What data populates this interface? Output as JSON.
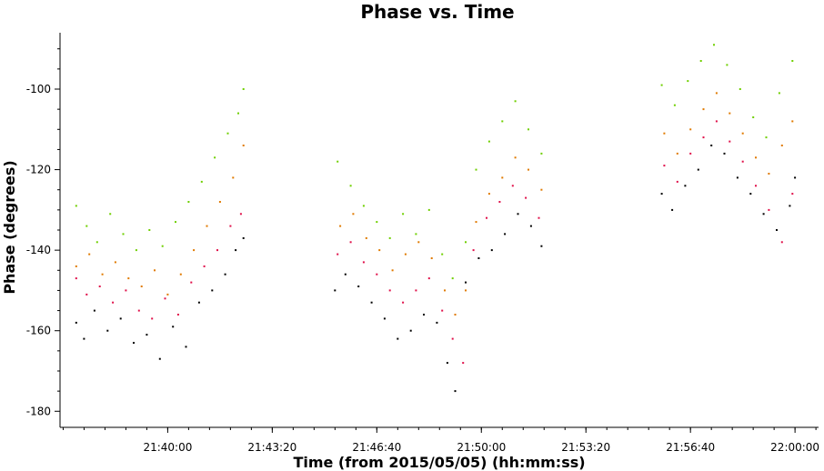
{
  "chart_data": {
    "type": "scatter",
    "title": "Phase vs. Time",
    "xlabel": "Time (from 2015/05/05) (hh:mm:ss)",
    "ylabel": "Phase (degrees)",
    "x_unit": "hh:mm:ss",
    "xlim": [
      "21:36:34",
      "22:00:45"
    ],
    "ylim": [
      -184,
      -86
    ],
    "x_ticks": [
      "21:40:00",
      "21:43:20",
      "21:46:40",
      "21:50:00",
      "21:53:20",
      "21:56:40",
      "22:00:00"
    ],
    "y_ticks": [
      -100,
      -120,
      -140,
      -160,
      -180
    ],
    "grid": false,
    "legend": "none",
    "series": [
      {
        "color": "#000000",
        "points": [
          [
            "21:37:05",
            -158
          ],
          [
            "21:37:20",
            -162
          ],
          [
            "21:37:40",
            -155
          ],
          [
            "21:38:05",
            -160
          ],
          [
            "21:38:30",
            -157
          ],
          [
            "21:38:55",
            -163
          ],
          [
            "21:39:20",
            -161
          ],
          [
            "21:39:45",
            -167
          ],
          [
            "21:40:10",
            -159
          ],
          [
            "21:40:35",
            -164
          ],
          [
            "21:41:00",
            -153
          ],
          [
            "21:41:25",
            -150
          ],
          [
            "21:41:50",
            -146
          ],
          [
            "21:42:10",
            -140
          ],
          [
            "21:42:25",
            -137
          ],
          [
            "21:45:20",
            -150
          ],
          [
            "21:45:40",
            -146
          ],
          [
            "21:46:05",
            -149
          ],
          [
            "21:46:30",
            -153
          ],
          [
            "21:46:55",
            -157
          ],
          [
            "21:47:20",
            -162
          ],
          [
            "21:47:45",
            -160
          ],
          [
            "21:48:10",
            -156
          ],
          [
            "21:48:35",
            -158
          ],
          [
            "21:48:55",
            -168
          ],
          [
            "21:49:10",
            -175
          ],
          [
            "21:49:30",
            -148
          ],
          [
            "21:49:55",
            -142
          ],
          [
            "21:50:20",
            -140
          ],
          [
            "21:50:45",
            -136
          ],
          [
            "21:51:10",
            -131
          ],
          [
            "21:51:35",
            -134
          ],
          [
            "21:51:55",
            -139
          ],
          [
            "21:55:45",
            -126
          ],
          [
            "21:56:05",
            -130
          ],
          [
            "21:56:30",
            -124
          ],
          [
            "21:56:55",
            -120
          ],
          [
            "21:57:20",
            -114
          ],
          [
            "21:57:45",
            -116
          ],
          [
            "21:58:10",
            -122
          ],
          [
            "21:58:35",
            -126
          ],
          [
            "21:59:00",
            -131
          ],
          [
            "21:59:25",
            -135
          ],
          [
            "21:59:50",
            -129
          ],
          [
            "22:00:00",
            -122
          ]
        ]
      },
      {
        "color": "#e0104a",
        "points": [
          [
            "21:37:05",
            -147
          ],
          [
            "21:37:25",
            -151
          ],
          [
            "21:37:50",
            -149
          ],
          [
            "21:38:15",
            -153
          ],
          [
            "21:38:40",
            -150
          ],
          [
            "21:39:05",
            -155
          ],
          [
            "21:39:30",
            -157
          ],
          [
            "21:39:55",
            -152
          ],
          [
            "21:40:20",
            -156
          ],
          [
            "21:40:45",
            -148
          ],
          [
            "21:41:10",
            -144
          ],
          [
            "21:41:35",
            -140
          ],
          [
            "21:42:00",
            -134
          ],
          [
            "21:42:20",
            -131
          ],
          [
            "21:45:25",
            -141
          ],
          [
            "21:45:50",
            -138
          ],
          [
            "21:46:15",
            -143
          ],
          [
            "21:46:40",
            -146
          ],
          [
            "21:47:05",
            -150
          ],
          [
            "21:47:30",
            -153
          ],
          [
            "21:47:55",
            -150
          ],
          [
            "21:48:20",
            -147
          ],
          [
            "21:48:45",
            -155
          ],
          [
            "21:49:05",
            -162
          ],
          [
            "21:49:25",
            -168
          ],
          [
            "21:49:45",
            -140
          ],
          [
            "21:50:10",
            -132
          ],
          [
            "21:50:35",
            -128
          ],
          [
            "21:51:00",
            -124
          ],
          [
            "21:51:25",
            -127
          ],
          [
            "21:51:50",
            -132
          ],
          [
            "21:55:50",
            -119
          ],
          [
            "21:56:15",
            -123
          ],
          [
            "21:56:40",
            -116
          ],
          [
            "21:57:05",
            -112
          ],
          [
            "21:57:30",
            -108
          ],
          [
            "21:57:55",
            -113
          ],
          [
            "21:58:20",
            -118
          ],
          [
            "21:58:45",
            -124
          ],
          [
            "21:59:10",
            -130
          ],
          [
            "21:59:35",
            -138
          ],
          [
            "21:59:55",
            -126
          ]
        ]
      },
      {
        "color": "#e07a00",
        "points": [
          [
            "21:37:05",
            -144
          ],
          [
            "21:37:30",
            -141
          ],
          [
            "21:37:55",
            -146
          ],
          [
            "21:38:20",
            -143
          ],
          [
            "21:38:45",
            -147
          ],
          [
            "21:39:10",
            -149
          ],
          [
            "21:39:35",
            -145
          ],
          [
            "21:40:00",
            -151
          ],
          [
            "21:40:25",
            -146
          ],
          [
            "21:40:50",
            -140
          ],
          [
            "21:41:15",
            -134
          ],
          [
            "21:41:40",
            -128
          ],
          [
            "21:42:05",
            -122
          ],
          [
            "21:42:25",
            -114
          ],
          [
            "21:45:30",
            -134
          ],
          [
            "21:45:55",
            -131
          ],
          [
            "21:46:20",
            -137
          ],
          [
            "21:46:45",
            -140
          ],
          [
            "21:47:10",
            -145
          ],
          [
            "21:47:35",
            -141
          ],
          [
            "21:48:00",
            -138
          ],
          [
            "21:48:25",
            -142
          ],
          [
            "21:48:50",
            -150
          ],
          [
            "21:49:10",
            -156
          ],
          [
            "21:49:30",
            -150
          ],
          [
            "21:49:50",
            -133
          ],
          [
            "21:50:15",
            -126
          ],
          [
            "21:50:40",
            -122
          ],
          [
            "21:51:05",
            -117
          ],
          [
            "21:51:30",
            -120
          ],
          [
            "21:51:55",
            -125
          ],
          [
            "21:55:50",
            -111
          ],
          [
            "21:56:15",
            -116
          ],
          [
            "21:56:40",
            -110
          ],
          [
            "21:57:05",
            -105
          ],
          [
            "21:57:30",
            -101
          ],
          [
            "21:57:55",
            -106
          ],
          [
            "21:58:20",
            -111
          ],
          [
            "21:58:45",
            -117
          ],
          [
            "21:59:10",
            -121
          ],
          [
            "21:59:35",
            -114
          ],
          [
            "21:59:55",
            -108
          ]
        ]
      },
      {
        "color": "#6fcf00",
        "points": [
          [
            "21:37:05",
            -129
          ],
          [
            "21:37:25",
            -134
          ],
          [
            "21:37:45",
            -138
          ],
          [
            "21:38:10",
            -131
          ],
          [
            "21:38:35",
            -136
          ],
          [
            "21:39:00",
            -140
          ],
          [
            "21:39:25",
            -135
          ],
          [
            "21:39:50",
            -139
          ],
          [
            "21:40:15",
            -133
          ],
          [
            "21:40:40",
            -128
          ],
          [
            "21:41:05",
            -123
          ],
          [
            "21:41:30",
            -117
          ],
          [
            "21:41:55",
            -111
          ],
          [
            "21:42:15",
            -106
          ],
          [
            "21:42:25",
            -100
          ],
          [
            "21:45:25",
            -118
          ],
          [
            "21:45:50",
            -124
          ],
          [
            "21:46:15",
            -129
          ],
          [
            "21:46:40",
            -133
          ],
          [
            "21:47:05",
            -137
          ],
          [
            "21:47:30",
            -131
          ],
          [
            "21:47:55",
            -136
          ],
          [
            "21:48:20",
            -130
          ],
          [
            "21:48:45",
            -141
          ],
          [
            "21:49:05",
            -147
          ],
          [
            "21:49:30",
            -138
          ],
          [
            "21:49:50",
            -120
          ],
          [
            "21:50:15",
            -113
          ],
          [
            "21:50:40",
            -108
          ],
          [
            "21:51:05",
            -103
          ],
          [
            "21:51:30",
            -110
          ],
          [
            "21:51:55",
            -116
          ],
          [
            "21:55:45",
            -99
          ],
          [
            "21:56:10",
            -104
          ],
          [
            "21:56:35",
            -98
          ],
          [
            "21:57:00",
            -93
          ],
          [
            "21:57:25",
            -89
          ],
          [
            "21:57:50",
            -94
          ],
          [
            "21:58:15",
            -100
          ],
          [
            "21:58:40",
            -107
          ],
          [
            "21:59:05",
            -112
          ],
          [
            "21:59:30",
            -101
          ],
          [
            "21:59:55",
            -93
          ]
        ]
      }
    ]
  }
}
